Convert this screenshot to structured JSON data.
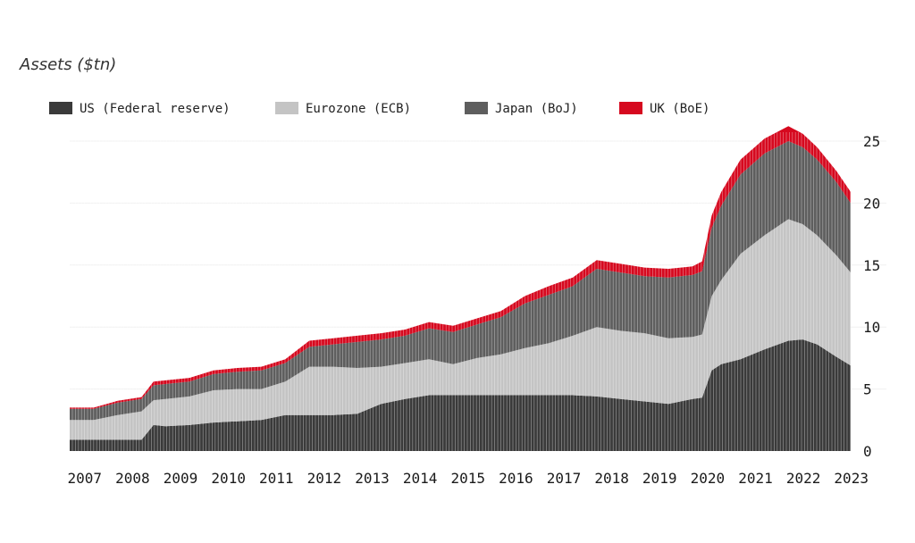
{
  "chart_data": {
    "type": "area",
    "title": "",
    "ylabel": "Assets ($tn)",
    "xlabel": "",
    "stacked": true,
    "ylim": [
      0,
      25
    ],
    "yticks": [
      0,
      5,
      10,
      15,
      20,
      25
    ],
    "y_axis_position": "right",
    "legend_position": "top",
    "x_ticks": [
      "2007",
      "2008",
      "2009",
      "2010",
      "2011",
      "2012",
      "2013",
      "2014",
      "2015",
      "2016",
      "2017",
      "2018",
      "2019",
      "2020",
      "2021",
      "2022",
      "2023"
    ],
    "x": [
      2007.0,
      2007.5,
      2008.0,
      2008.5,
      2008.75,
      2009.0,
      2009.5,
      2010.0,
      2010.5,
      2011.0,
      2011.5,
      2012.0,
      2012.5,
      2013.0,
      2013.5,
      2014.0,
      2014.5,
      2015.0,
      2015.5,
      2016.0,
      2016.5,
      2017.0,
      2017.5,
      2018.0,
      2018.5,
      2019.0,
      2019.5,
      2020.0,
      2020.2,
      2020.4,
      2020.6,
      2021.0,
      2021.5,
      2022.0,
      2022.3,
      2022.6,
      2023.0,
      2023.3
    ],
    "series": [
      {
        "name": "US (Federal reserve)",
        "color": "#3a3a3a",
        "values": [
          0.9,
          0.9,
          0.9,
          0.9,
          2.1,
          2.0,
          2.1,
          2.3,
          2.4,
          2.5,
          2.9,
          2.9,
          2.9,
          3.0,
          3.8,
          4.2,
          4.5,
          4.5,
          4.5,
          4.5,
          4.5,
          4.5,
          4.5,
          4.4,
          4.2,
          4.0,
          3.8,
          4.2,
          4.3,
          6.5,
          7.0,
          7.4,
          8.2,
          8.9,
          9.0,
          8.6,
          7.6,
          6.9
        ]
      },
      {
        "name": "Eurozone (ECB)",
        "color": "#c4c4c4",
        "values": [
          1.6,
          1.6,
          2.0,
          2.3,
          2.0,
          2.2,
          2.3,
          2.6,
          2.6,
          2.5,
          2.7,
          3.9,
          3.9,
          3.7,
          3.0,
          2.9,
          2.9,
          2.5,
          3.0,
          3.3,
          3.8,
          4.2,
          4.8,
          5.6,
          5.5,
          5.5,
          5.3,
          5.0,
          5.1,
          6.0,
          6.8,
          8.5,
          9.2,
          9.8,
          9.3,
          8.8,
          8.2,
          7.5
        ]
      },
      {
        "name": "Japan (BoJ)",
        "color": "#5e5e5e",
        "values": [
          0.9,
          0.9,
          1.0,
          1.0,
          1.2,
          1.2,
          1.2,
          1.3,
          1.4,
          1.5,
          1.5,
          1.6,
          1.8,
          2.1,
          2.2,
          2.2,
          2.5,
          2.6,
          2.7,
          3.0,
          3.6,
          3.9,
          4.0,
          4.7,
          4.7,
          4.6,
          4.9,
          5.0,
          5.1,
          5.5,
          6.0,
          6.4,
          6.6,
          6.3,
          6.2,
          6.1,
          5.9,
          5.6
        ]
      },
      {
        "name": "UK (BoE)",
        "color": "#d6091f",
        "values": [
          0.1,
          0.1,
          0.15,
          0.15,
          0.3,
          0.3,
          0.3,
          0.3,
          0.3,
          0.3,
          0.3,
          0.5,
          0.5,
          0.5,
          0.5,
          0.5,
          0.5,
          0.5,
          0.5,
          0.5,
          0.6,
          0.7,
          0.7,
          0.7,
          0.7,
          0.7,
          0.7,
          0.7,
          0.8,
          1.0,
          1.1,
          1.2,
          1.2,
          1.2,
          1.1,
          1.0,
          0.9,
          0.9
        ]
      }
    ]
  }
}
